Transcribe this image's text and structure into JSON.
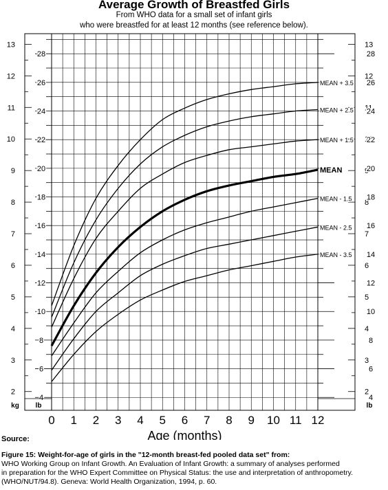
{
  "header": {
    "title": "Average Growth of Breastfed Girls",
    "subtitle_line1": "From WHO data for a small set of infant girls",
    "subtitle_line2": "who were breastfed for at least 12 months (see reference below)."
  },
  "footer": {
    "source_label": "Source:",
    "caption_title": "Figure 15: Weight-for-age of girls in the \"12-month breast-fed pooled data set\" from:",
    "caption_line1": "WHO Working Group on Infant Growth. An Evaluation of Infant Growth: a summary of analyses performed",
    "caption_line2": "in preparation for the WHO Expert Committee on Physical Status: the use and interpretation of anthropometry.",
    "caption_line3": "(WHO/NUT/94.8). Geneva: World Health Organization, 1994, p. 60."
  },
  "chart_data": {
    "type": "line",
    "xlabel": "Age (months)",
    "x": [
      0,
      1,
      2,
      3,
      4,
      5,
      6,
      7,
      8,
      9,
      10,
      11,
      12
    ],
    "xlim": [
      0,
      12
    ],
    "y_units": {
      "kg_label": "kg",
      "lb_label": "lb"
    },
    "kg_ticks": [
      2,
      3,
      4,
      5,
      6,
      7,
      8,
      9,
      10,
      11,
      12,
      13
    ],
    "lb_ticks": [
      4,
      6,
      8,
      10,
      12,
      14,
      16,
      18,
      20,
      22,
      24,
      26,
      28
    ],
    "ylim_lb": [
      3.1,
      29.4
    ],
    "grid": true,
    "series": [
      {
        "name": "MEAN + 3.5",
        "values": [
          10.4,
          14.6,
          17.9,
          20.2,
          22.0,
          23.4,
          24.2,
          24.8,
          25.2,
          25.5,
          25.7,
          25.9,
          26.0
        ]
      },
      {
        "name": "MEAN + 2.5",
        "values": [
          9.6,
          13.4,
          16.4,
          18.6,
          20.3,
          21.5,
          22.3,
          22.9,
          23.3,
          23.6,
          23.8,
          24.0,
          24.1
        ]
      },
      {
        "name": "MEAN + 1.5",
        "values": [
          8.9,
          12.3,
          15.1,
          17.0,
          18.6,
          19.6,
          20.4,
          20.9,
          21.3,
          21.5,
          21.7,
          21.9,
          22.0
        ]
      },
      {
        "name": "MEAN",
        "values": [
          7.6,
          10.4,
          12.7,
          14.5,
          15.9,
          17.0,
          17.8,
          18.4,
          18.8,
          19.1,
          19.4,
          19.6,
          19.9
        ]
      },
      {
        "name": "MEAN - 1.5",
        "values": [
          6.9,
          9.2,
          11.3,
          12.8,
          14.1,
          15.0,
          15.7,
          16.2,
          16.6,
          17.0,
          17.3,
          17.6,
          17.9
        ]
      },
      {
        "name": "MEAN - 2.5",
        "values": [
          5.9,
          8.1,
          10.0,
          11.3,
          12.5,
          13.3,
          13.9,
          14.4,
          14.7,
          15.0,
          15.3,
          15.6,
          15.9
        ]
      },
      {
        "name": "MEAN - 3.5",
        "values": [
          5.1,
          7.0,
          8.6,
          9.8,
          10.8,
          11.5,
          12.1,
          12.5,
          12.9,
          13.2,
          13.5,
          13.8,
          14.0
        ]
      }
    ],
    "bold_series": "MEAN",
    "line_color": "#000000"
  }
}
